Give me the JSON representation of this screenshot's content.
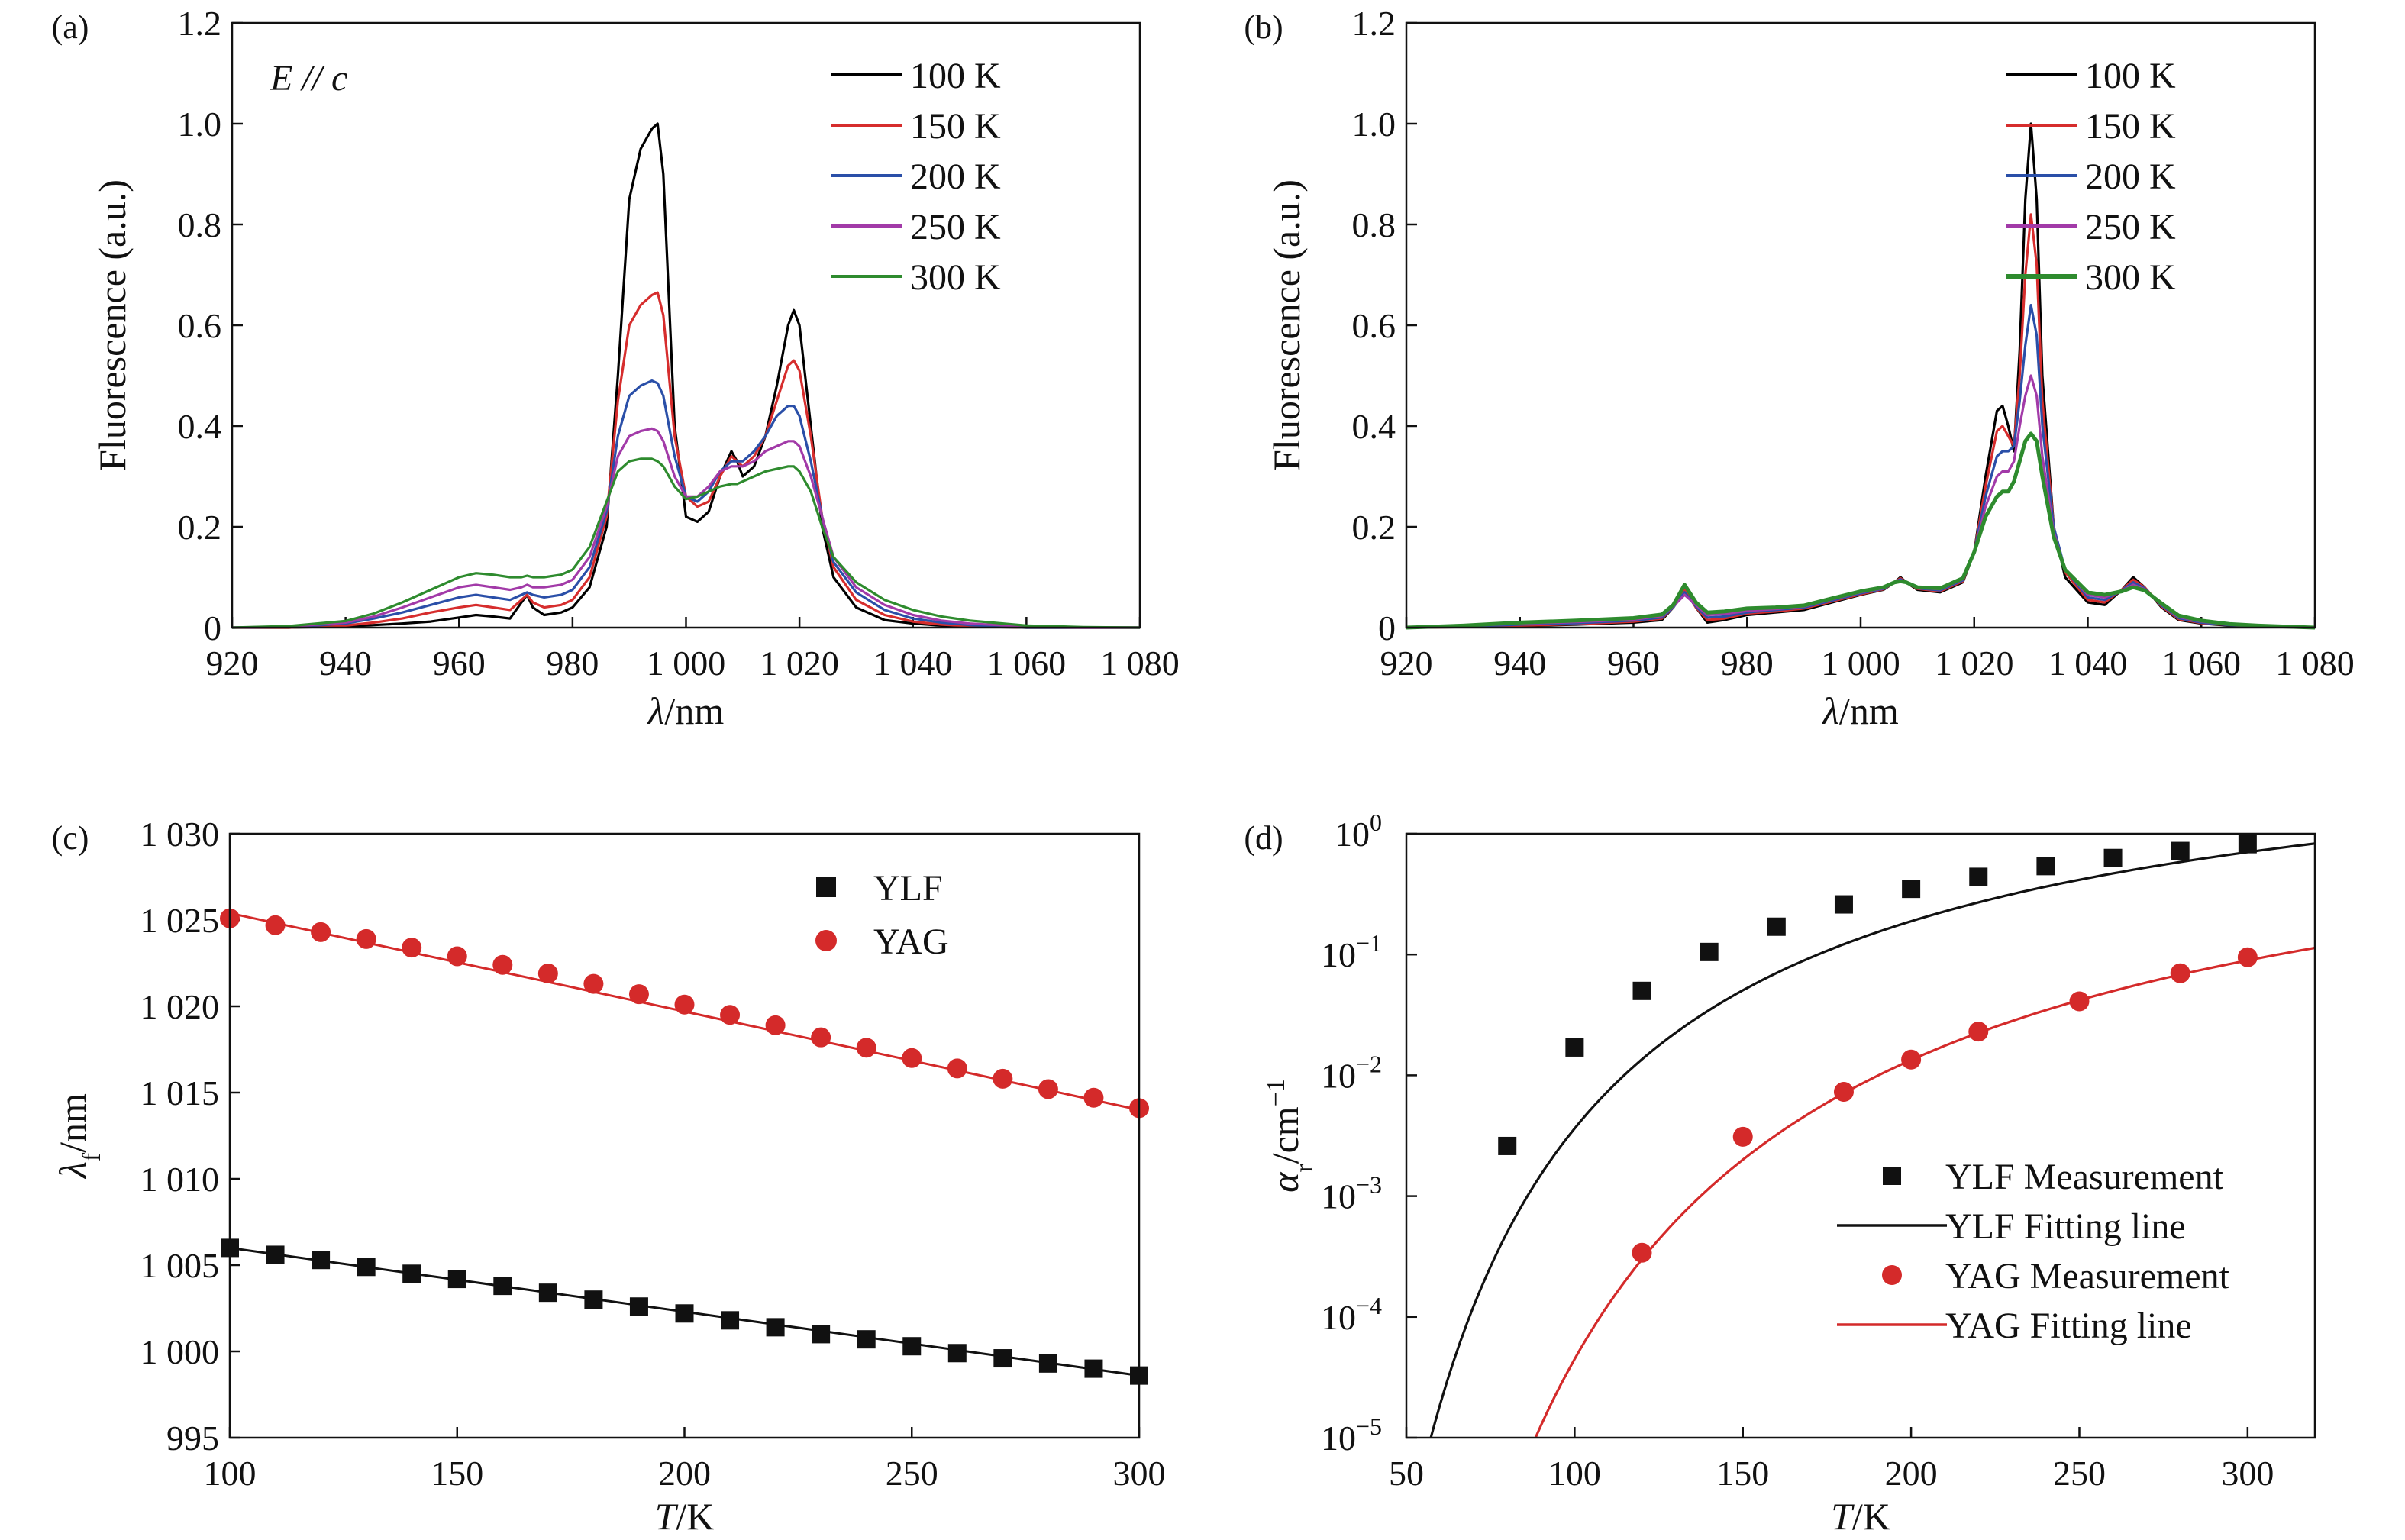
{
  "chart_data": [
    {
      "panel": "(a)",
      "type": "line",
      "annotation": "E // c",
      "xlabel": "λ/nm",
      "ylabel": "Fluorescence (a.u.)",
      "xlim": [
        920,
        1080
      ],
      "ylim": [
        0,
        1.2
      ],
      "xticks": [
        920,
        940,
        960,
        980,
        1000,
        1020,
        1040,
        1060,
        1080
      ],
      "xtick_labels": [
        "920",
        "940",
        "960",
        "980",
        "1 000",
        "1 020",
        "1 040",
        "1 060",
        "1 080"
      ],
      "yticks": [
        0,
        0.2,
        0.4,
        0.6,
        0.8,
        1.0,
        1.2
      ],
      "ytick_labels": [
        "0",
        "0.2",
        "0.4",
        "0.6",
        "0.8",
        "1.0",
        "1.2"
      ],
      "legend_position": "top-right",
      "x": [
        920,
        930,
        940,
        945,
        950,
        955,
        960,
        963,
        966,
        969,
        971,
        972,
        973,
        975,
        978,
        980,
        983,
        986,
        988,
        990,
        992,
        994,
        995,
        996,
        998,
        1000,
        1002,
        1004,
        1006,
        1008,
        1009,
        1010,
        1012,
        1014,
        1016,
        1018,
        1019,
        1020,
        1022,
        1024,
        1026,
        1030,
        1035,
        1040,
        1045,
        1050,
        1060,
        1070,
        1080
      ],
      "series": [
        {
          "name": "100 K",
          "color": "#000000",
          "values": [
            0,
            0,
            0.002,
            0.005,
            0.008,
            0.012,
            0.02,
            0.025,
            0.022,
            0.018,
            0.05,
            0.065,
            0.04,
            0.025,
            0.03,
            0.04,
            0.08,
            0.2,
            0.5,
            0.85,
            0.95,
            0.99,
            1.0,
            0.9,
            0.4,
            0.22,
            0.21,
            0.23,
            0.3,
            0.35,
            0.33,
            0.3,
            0.32,
            0.38,
            0.48,
            0.6,
            0.63,
            0.6,
            0.4,
            0.2,
            0.1,
            0.04,
            0.015,
            0.008,
            0.004,
            0.002,
            0,
            0,
            0
          ]
        },
        {
          "name": "150 K",
          "color": "#d62d2d",
          "values": [
            0,
            0,
            0.004,
            0.01,
            0.018,
            0.03,
            0.04,
            0.045,
            0.04,
            0.035,
            0.055,
            0.065,
            0.05,
            0.04,
            0.045,
            0.055,
            0.1,
            0.22,
            0.45,
            0.6,
            0.64,
            0.66,
            0.665,
            0.62,
            0.38,
            0.26,
            0.24,
            0.25,
            0.3,
            0.34,
            0.33,
            0.32,
            0.34,
            0.38,
            0.45,
            0.52,
            0.53,
            0.51,
            0.38,
            0.22,
            0.12,
            0.055,
            0.025,
            0.012,
            0.006,
            0.003,
            0,
            0,
            0
          ]
        },
        {
          "name": "200 K",
          "color": "#2a4fa8",
          "values": [
            0,
            0.001,
            0.008,
            0.018,
            0.03,
            0.045,
            0.06,
            0.065,
            0.06,
            0.055,
            0.065,
            0.07,
            0.065,
            0.06,
            0.065,
            0.075,
            0.12,
            0.23,
            0.38,
            0.46,
            0.48,
            0.49,
            0.485,
            0.46,
            0.34,
            0.26,
            0.25,
            0.27,
            0.31,
            0.33,
            0.33,
            0.33,
            0.35,
            0.38,
            0.42,
            0.44,
            0.44,
            0.42,
            0.33,
            0.22,
            0.13,
            0.07,
            0.035,
            0.018,
            0.01,
            0.005,
            0,
            0,
            0
          ]
        },
        {
          "name": "250 K",
          "color": "#a23aa8",
          "values": [
            0,
            0.002,
            0.01,
            0.022,
            0.04,
            0.06,
            0.08,
            0.085,
            0.08,
            0.075,
            0.08,
            0.085,
            0.08,
            0.08,
            0.085,
            0.095,
            0.14,
            0.24,
            0.34,
            0.38,
            0.39,
            0.395,
            0.39,
            0.37,
            0.3,
            0.26,
            0.26,
            0.28,
            0.31,
            0.32,
            0.32,
            0.32,
            0.33,
            0.35,
            0.36,
            0.37,
            0.37,
            0.36,
            0.3,
            0.22,
            0.14,
            0.08,
            0.045,
            0.025,
            0.014,
            0.008,
            0.002,
            0,
            0
          ]
        },
        {
          "name": "300 K",
          "color": "#2e8b2e",
          "values": [
            0,
            0.003,
            0.013,
            0.028,
            0.05,
            0.075,
            0.1,
            0.108,
            0.105,
            0.1,
            0.1,
            0.103,
            0.1,
            0.1,
            0.105,
            0.115,
            0.16,
            0.25,
            0.31,
            0.33,
            0.335,
            0.335,
            0.33,
            0.32,
            0.28,
            0.255,
            0.26,
            0.27,
            0.28,
            0.285,
            0.285,
            0.29,
            0.3,
            0.31,
            0.315,
            0.32,
            0.32,
            0.31,
            0.27,
            0.2,
            0.14,
            0.09,
            0.055,
            0.035,
            0.022,
            0.014,
            0.004,
            0.001,
            0
          ]
        }
      ]
    },
    {
      "panel": "(b)",
      "type": "line",
      "xlabel": "λ/nm",
      "ylabel": "Fluorescence (a.u.)",
      "xlim": [
        920,
        1080
      ],
      "ylim": [
        0,
        1.2
      ],
      "xticks": [
        920,
        940,
        960,
        980,
        1000,
        1020,
        1040,
        1060,
        1080
      ],
      "xtick_labels": [
        "920",
        "940",
        "960",
        "980",
        "1 000",
        "1 020",
        "1 040",
        "1 060",
        "1 080"
      ],
      "yticks": [
        0,
        0.2,
        0.4,
        0.6,
        0.8,
        1.0,
        1.2
      ],
      "ytick_labels": [
        "0",
        "0.2",
        "0.4",
        "0.6",
        "0.8",
        "1.0",
        "1.2"
      ],
      "legend_position": "top-right",
      "x": [
        920,
        930,
        940,
        950,
        960,
        965,
        967,
        969,
        971,
        973,
        976,
        980,
        985,
        990,
        995,
        1000,
        1004,
        1006,
        1007,
        1008,
        1010,
        1014,
        1018,
        1020,
        1022,
        1024,
        1025,
        1026,
        1027,
        1028,
        1029,
        1030,
        1031,
        1032,
        1034,
        1036,
        1040,
        1043,
        1046,
        1048,
        1050,
        1053,
        1056,
        1060,
        1065,
        1070,
        1080
      ],
      "series": [
        {
          "name": "100 K",
          "color": "#000000",
          "values": [
            0,
            0.001,
            0.003,
            0.006,
            0.01,
            0.015,
            0.04,
            0.085,
            0.04,
            0.01,
            0.015,
            0.025,
            0.03,
            0.035,
            0.05,
            0.065,
            0.075,
            0.09,
            0.1,
            0.09,
            0.075,
            0.07,
            0.09,
            0.15,
            0.3,
            0.43,
            0.44,
            0.4,
            0.35,
            0.55,
            0.85,
            1.0,
            0.85,
            0.5,
            0.2,
            0.1,
            0.05,
            0.045,
            0.075,
            0.1,
            0.08,
            0.04,
            0.015,
            0.008,
            0.004,
            0.002,
            0
          ]
        },
        {
          "name": "150 K",
          "color": "#d62d2d",
          "values": [
            0,
            0.001,
            0.004,
            0.007,
            0.012,
            0.018,
            0.04,
            0.075,
            0.04,
            0.015,
            0.018,
            0.028,
            0.032,
            0.038,
            0.052,
            0.066,
            0.076,
            0.09,
            0.098,
            0.09,
            0.077,
            0.072,
            0.092,
            0.15,
            0.28,
            0.39,
            0.4,
            0.38,
            0.36,
            0.5,
            0.7,
            0.82,
            0.72,
            0.45,
            0.2,
            0.11,
            0.055,
            0.05,
            0.075,
            0.095,
            0.08,
            0.042,
            0.017,
            0.009,
            0.005,
            0.002,
            0
          ]
        },
        {
          "name": "200 K",
          "color": "#2a4fa8",
          "values": [
            0,
            0.002,
            0.006,
            0.009,
            0.014,
            0.02,
            0.04,
            0.07,
            0.042,
            0.02,
            0.022,
            0.03,
            0.035,
            0.04,
            0.054,
            0.068,
            0.077,
            0.09,
            0.096,
            0.09,
            0.078,
            0.074,
            0.094,
            0.15,
            0.26,
            0.34,
            0.35,
            0.35,
            0.36,
            0.45,
            0.56,
            0.64,
            0.58,
            0.4,
            0.2,
            0.115,
            0.06,
            0.055,
            0.074,
            0.09,
            0.078,
            0.044,
            0.019,
            0.01,
            0.005,
            0.003,
            0
          ]
        },
        {
          "name": "250 K",
          "color": "#a23aa8",
          "values": [
            0,
            0.003,
            0.008,
            0.011,
            0.016,
            0.023,
            0.042,
            0.065,
            0.045,
            0.025,
            0.027,
            0.033,
            0.037,
            0.042,
            0.056,
            0.07,
            0.078,
            0.09,
            0.094,
            0.09,
            0.079,
            0.076,
            0.096,
            0.15,
            0.24,
            0.3,
            0.31,
            0.31,
            0.33,
            0.4,
            0.46,
            0.5,
            0.46,
            0.34,
            0.19,
            0.115,
            0.065,
            0.06,
            0.073,
            0.085,
            0.076,
            0.046,
            0.021,
            0.012,
            0.006,
            0.003,
            0
          ]
        },
        {
          "name": "300 K",
          "color": "#2e8b2e",
          "values": [
            0,
            0.004,
            0.01,
            0.014,
            0.019,
            0.026,
            0.045,
            0.085,
            0.05,
            0.03,
            0.032,
            0.038,
            0.04,
            0.044,
            0.058,
            0.072,
            0.08,
            0.09,
            0.092,
            0.09,
            0.08,
            0.078,
            0.098,
            0.15,
            0.22,
            0.26,
            0.27,
            0.27,
            0.29,
            0.33,
            0.37,
            0.385,
            0.37,
            0.3,
            0.18,
            0.115,
            0.07,
            0.065,
            0.072,
            0.08,
            0.074,
            0.048,
            0.024,
            0.014,
            0.007,
            0.004,
            0
          ]
        }
      ]
    },
    {
      "panel": "(c)",
      "type": "scatter",
      "xlabel": "T/K",
      "ylabel": "λf/nm",
      "xlim": [
        100,
        300
      ],
      "ylim": [
        995,
        1030
      ],
      "xticks": [
        100,
        150,
        200,
        250,
        300
      ],
      "xtick_labels": [
        "100",
        "150",
        "200",
        "250",
        "300"
      ],
      "yticks": [
        995,
        1000,
        1005,
        1010,
        1015,
        1020,
        1025,
        1030
      ],
      "ytick_labels": [
        "995",
        "1 000",
        "1 005",
        "1 010",
        "1 015",
        "1 020",
        "1 025",
        "1 030"
      ],
      "legend_position": "top-center",
      "series": [
        {
          "name": "YLF",
          "marker": "square",
          "color": "#111111",
          "x": [
            100,
            110,
            120,
            130,
            140,
            150,
            160,
            170,
            180,
            190,
            200,
            210,
            220,
            230,
            240,
            250,
            260,
            270,
            280,
            290,
            300
          ],
          "values": [
            1006.0,
            1005.6,
            1005.3,
            1004.9,
            1004.5,
            1004.2,
            1003.8,
            1003.4,
            1003.0,
            1002.6,
            1002.2,
            1001.8,
            1001.4,
            1001.0,
            1000.7,
            1000.3,
            999.9,
            999.6,
            999.3,
            999.0,
            998.6
          ],
          "fit": [
            1006.0,
            998.6
          ]
        },
        {
          "name": "YAG",
          "marker": "circle",
          "color": "#d42a2a",
          "x": [
            100,
            110,
            120,
            130,
            140,
            150,
            160,
            170,
            180,
            190,
            200,
            210,
            220,
            230,
            240,
            250,
            260,
            270,
            280,
            290,
            300
          ],
          "values": [
            1025.1,
            1024.7,
            1024.3,
            1023.9,
            1023.4,
            1022.9,
            1022.4,
            1021.9,
            1021.3,
            1020.7,
            1020.1,
            1019.5,
            1018.9,
            1018.2,
            1017.6,
            1017.0,
            1016.4,
            1015.8,
            1015.2,
            1014.7,
            1014.1
          ],
          "fit": [
            1025.4,
            1014.0
          ]
        }
      ]
    },
    {
      "panel": "(d)",
      "type": "scatter",
      "xlabel": "T/K",
      "ylabel": "αr/cm−1",
      "xlim": [
        50,
        320
      ],
      "ylim": [
        1e-05,
        1
      ],
      "yscale": "log",
      "xticks": [
        50,
        100,
        150,
        200,
        250,
        300
      ],
      "xtick_labels": [
        "50",
        "100",
        "150",
        "200",
        "250",
        "300"
      ],
      "yticks": [
        1e-05,
        0.0001,
        0.001,
        0.01,
        0.1,
        1
      ],
      "ytick_exponents": [
        "−5",
        "−4",
        "−3",
        "−2",
        "−1",
        "0"
      ],
      "legend_position": "bottom-right",
      "series": [
        {
          "name": "YLF Measurement",
          "marker": "square",
          "color": "#111111",
          "x": [
            80,
            100,
            120,
            140,
            160,
            180,
            200,
            220,
            240,
            260,
            280,
            300
          ],
          "values": [
            0.0026,
            0.017,
            0.05,
            0.105,
            0.17,
            0.26,
            0.35,
            0.44,
            0.54,
            0.63,
            0.72,
            0.82
          ]
        },
        {
          "name": "YLF Fitting line",
          "line": true,
          "color": "#111111",
          "fit_model": "A*exp(-E/T)",
          "fit_params": {
            "A": 9.8,
            "E": 790
          }
        },
        {
          "name": "YAG Measurement",
          "marker": "circle",
          "color": "#d42a2a",
          "x": [
            120,
            150,
            180,
            200,
            220,
            250,
            280,
            300
          ],
          "values": [
            0.00034,
            0.0031,
            0.0073,
            0.0135,
            0.023,
            0.041,
            0.07,
            0.095
          ]
        },
        {
          "name": "YAG Fitting line",
          "line": true,
          "color": "#d42a2a",
          "fit_model": "A*exp(-E/T)",
          "fit_params": {
            "A": 4.0,
            "E": 1140
          }
        }
      ]
    }
  ]
}
